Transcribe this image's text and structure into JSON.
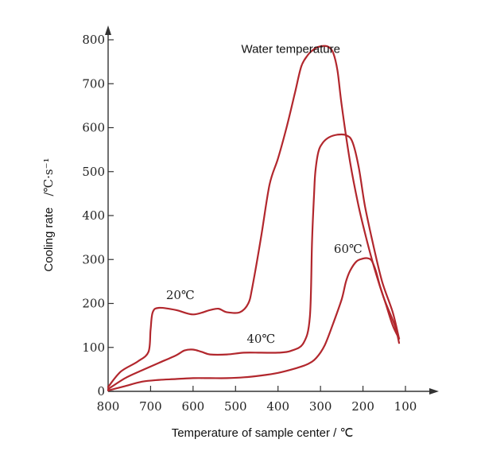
{
  "chart_data": {
    "type": "line",
    "title": "",
    "xlabel": "Temperature of sample center / ℃",
    "ylabel": "Cooling rate",
    "ylabel_unit": "/℃·s⁻¹",
    "xlim": [
      800,
      100
    ],
    "ylim": [
      0,
      800
    ],
    "x_ticks": [
      "800",
      "700",
      "600",
      "500",
      "400",
      "300",
      "200",
      "100"
    ],
    "y_ticks": [
      "0",
      "100",
      "200",
      "300",
      "400",
      "500",
      "600",
      "700",
      "800"
    ],
    "x_reversed": true,
    "grid": false,
    "line_color": "#b2272d",
    "series": [
      {
        "name": "Water temperature",
        "x": [
          800,
          770,
          730,
          705,
          700,
          695,
          680,
          640,
          600,
          560,
          540,
          520,
          490,
          470,
          460,
          440,
          420,
          400,
          380,
          360,
          345,
          330,
          320,
          310,
          300,
          290,
          280,
          270,
          260,
          250,
          230,
          210,
          190,
          170,
          150,
          125,
          115
        ],
        "y": [
          10,
          45,
          68,
          90,
          140,
          180,
          190,
          185,
          175,
          185,
          188,
          180,
          180,
          200,
          240,
          350,
          470,
          530,
          600,
          680,
          740,
          765,
          775,
          782,
          785,
          786,
          783,
          770,
          730,
          650,
          520,
          420,
          340,
          270,
          210,
          150,
          110
        ]
      },
      {
        "name": "20℃",
        "x": [
          800,
          760,
          720,
          680,
          640,
          620,
          600,
          580,
          560,
          520,
          480,
          440,
          400,
          370,
          340,
          325,
          320,
          315,
          312,
          305,
          295,
          280,
          260,
          240,
          225,
          210,
          195,
          175,
          155,
          130,
          115
        ],
        "y": [
          5,
          30,
          48,
          65,
          82,
          93,
          95,
          90,
          84,
          84,
          88,
          88,
          88,
          92,
          110,
          170,
          340,
          450,
          500,
          545,
          565,
          578,
          584,
          583,
          568,
          510,
          420,
          330,
          250,
          180,
          120
        ]
      },
      {
        "name": "40℃",
        "x": [
          800,
          760,
          720,
          680,
          640,
          600,
          560,
          520,
          480,
          440,
          400,
          360,
          330,
          310,
          290,
          270,
          250,
          240,
          230,
          215,
          200,
          190,
          180,
          170,
          160,
          145,
          130,
          115
        ],
        "y": [
          2,
          12,
          22,
          26,
          28,
          30,
          30,
          30,
          32,
          36,
          42,
          52,
          62,
          76,
          105,
          155,
          210,
          250,
          275,
          296,
          302,
          303,
          298,
          275,
          240,
          195,
          150,
          120
        ]
      }
    ],
    "annotations": [
      {
        "text": "Water temperature",
        "x": 370,
        "y": 770
      },
      {
        "text": "20℃",
        "x": 630,
        "y": 210
      },
      {
        "text": "40℃",
        "x": 440,
        "y": 110
      },
      {
        "text": "60℃",
        "x": 235,
        "y": 315
      }
    ]
  }
}
